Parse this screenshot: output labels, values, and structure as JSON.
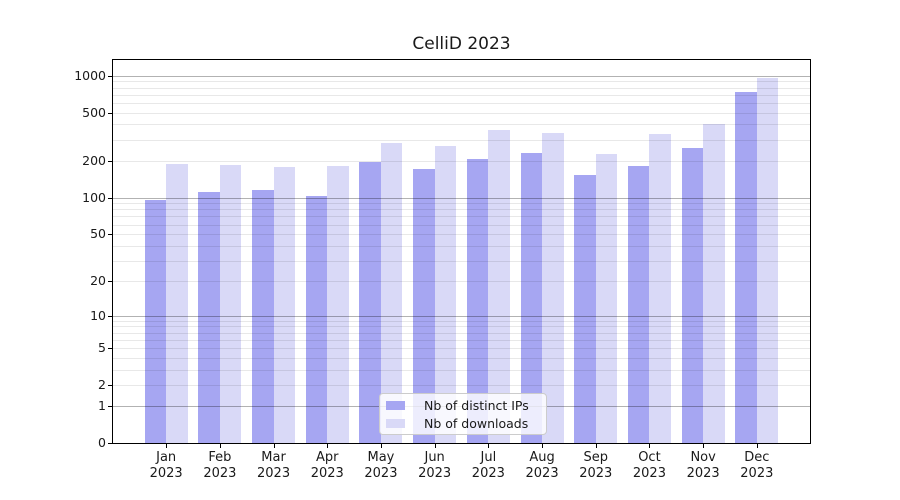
{
  "chart_data": {
    "type": "bar",
    "title": "CelliD 2023",
    "year": "2023",
    "months": [
      "Jan",
      "Feb",
      "Mar",
      "Apr",
      "May",
      "Jun",
      "Jul",
      "Aug",
      "Sep",
      "Oct",
      "Nov",
      "Dec"
    ],
    "series": [
      {
        "name": "Nb of distinct IPs",
        "color": "#a6a6f2",
        "values": [
          95,
          112,
          115,
          103,
          196,
          173,
          210,
          235,
          155,
          183,
          258,
          740
        ]
      },
      {
        "name": "Nb of downloads",
        "color": "#d9d9f7",
        "values": [
          190,
          186,
          178,
          184,
          282,
          266,
          360,
          340,
          230,
          335,
          405,
          955
        ]
      }
    ],
    "yscale": "log1p",
    "ylim": [
      0,
      1340
    ],
    "yticks_labeled": [
      1000,
      500,
      200,
      100,
      50,
      20,
      10,
      5,
      2,
      1,
      0
    ],
    "gridlines_major": [
      1,
      10,
      100,
      1000
    ],
    "gridlines_minor": [
      2,
      3,
      4,
      5,
      6,
      7,
      8,
      9,
      20,
      30,
      40,
      50,
      60,
      70,
      80,
      90,
      200,
      300,
      400,
      500,
      600,
      700,
      800,
      900
    ],
    "legend_location": "lower center inside plot"
  }
}
